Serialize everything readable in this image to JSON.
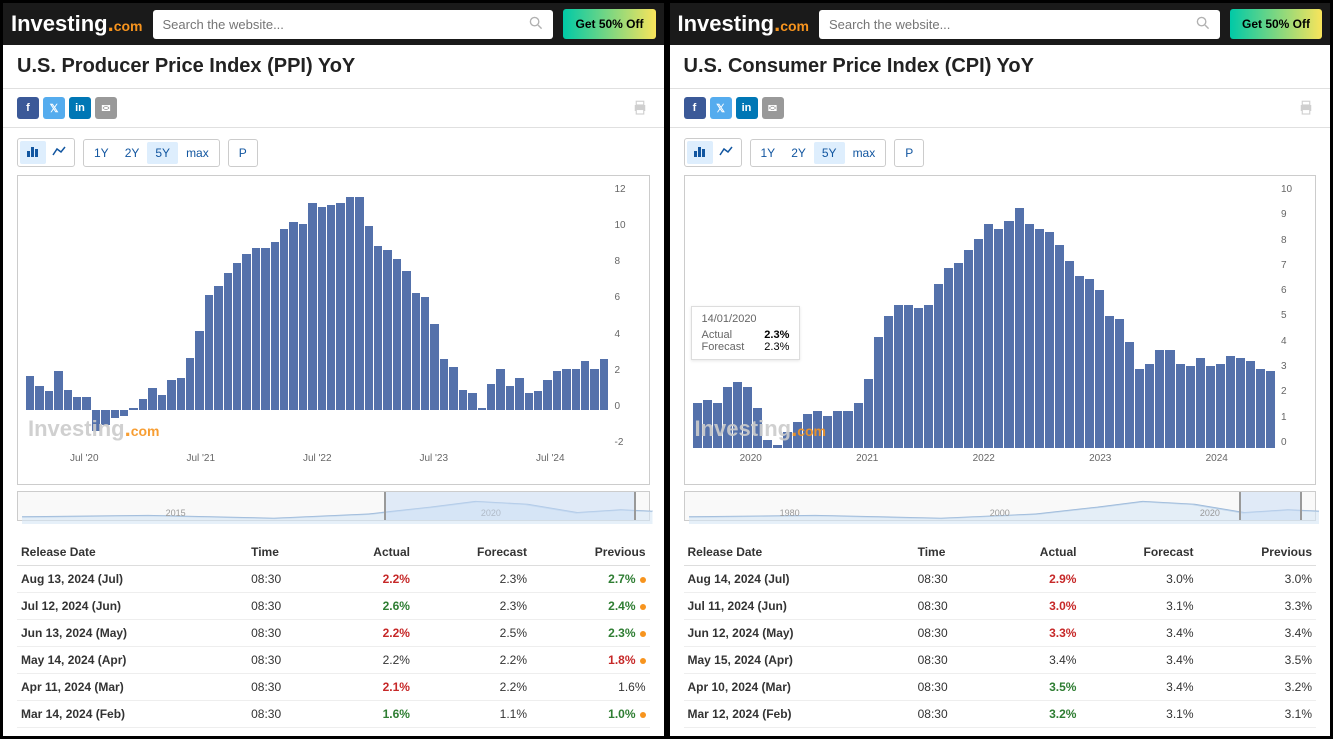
{
  "panels": [
    {
      "logo_text": "Investing",
      "logo_com": ".com",
      "search_placeholder": "Search the website...",
      "promo_label": "Get 50% Off",
      "title": "U.S. Producer Price Index (PPI) YoY",
      "controls": {
        "ranges": [
          "1Y",
          "2Y",
          "5Y",
          "max"
        ],
        "active_range": "5Y",
        "p_label": "P"
      },
      "chart": {
        "type": "bar",
        "bar_color": "#5471ab",
        "background_color": "#ffffff",
        "ylim": [
          -2,
          12
        ],
        "yticks": [
          12,
          10,
          8,
          6,
          4,
          2,
          0,
          -2
        ],
        "xlabels": [
          "Jul '20",
          "Jul '21",
          "Jul '22",
          "Jul '23",
          "Jul '24"
        ],
        "zero_line_pct": 85.7,
        "values": [
          1.8,
          1.3,
          1.0,
          2.1,
          1.1,
          0.7,
          0.7,
          -1.1,
          -0.8,
          -0.4,
          -0.3,
          0.1,
          0.6,
          1.2,
          0.8,
          1.6,
          1.7,
          2.8,
          4.2,
          6.1,
          6.6,
          7.3,
          7.8,
          8.3,
          8.6,
          8.6,
          8.9,
          9.6,
          10.0,
          9.9,
          11.0,
          10.8,
          10.9,
          11.0,
          11.3,
          11.3,
          9.8,
          8.7,
          8.5,
          8.0,
          7.4,
          6.2,
          6.0,
          4.6,
          2.7,
          2.3,
          1.1,
          0.9,
          0.1,
          1.4,
          2.2,
          1.3,
          1.7,
          0.9,
          1.0,
          1.6,
          2.1,
          2.2,
          2.2,
          2.6,
          2.2,
          2.7
        ]
      },
      "nav_chart": {
        "labels": [
          "2015",
          "2020"
        ],
        "window_left_pct": 58,
        "window_width_pct": 40
      },
      "watermark": {
        "text": "Investing",
        "com": ".com"
      },
      "table": {
        "headers": [
          "Release Date",
          "Time",
          "Actual",
          "Forecast",
          "Previous"
        ],
        "rows": [
          {
            "date": "Aug 13, 2024 (Jul)",
            "time": "08:30",
            "actual": "2.2%",
            "actual_cls": "red",
            "forecast": "2.3%",
            "previous": "2.7%",
            "prev_cls": "green",
            "dot": true
          },
          {
            "date": "Jul 12, 2024 (Jun)",
            "time": "08:30",
            "actual": "2.6%",
            "actual_cls": "green",
            "forecast": "2.3%",
            "previous": "2.4%",
            "prev_cls": "green",
            "dot": true
          },
          {
            "date": "Jun 13, 2024 (May)",
            "time": "08:30",
            "actual": "2.2%",
            "actual_cls": "red",
            "forecast": "2.5%",
            "previous": "2.3%",
            "prev_cls": "green",
            "dot": true
          },
          {
            "date": "May 14, 2024 (Apr)",
            "time": "08:30",
            "actual": "2.2%",
            "actual_cls": "neutral",
            "forecast": "2.2%",
            "previous": "1.8%",
            "prev_cls": "red",
            "dot": true
          },
          {
            "date": "Apr 11, 2024 (Mar)",
            "time": "08:30",
            "actual": "2.1%",
            "actual_cls": "red",
            "forecast": "2.2%",
            "previous": "1.6%",
            "prev_cls": "neutral",
            "dot": false
          },
          {
            "date": "Mar 14, 2024 (Feb)",
            "time": "08:30",
            "actual": "1.6%",
            "actual_cls": "green",
            "forecast": "1.1%",
            "previous": "1.0%",
            "prev_cls": "green",
            "dot": true
          }
        ]
      }
    },
    {
      "logo_text": "Investing",
      "logo_com": ".com",
      "search_placeholder": "Search the website...",
      "promo_label": "Get 50% Off",
      "title": "U.S. Consumer Price Index (CPI) YoY",
      "controls": {
        "ranges": [
          "1Y",
          "2Y",
          "5Y",
          "max"
        ],
        "active_range": "5Y",
        "p_label": "P"
      },
      "chart": {
        "type": "bar",
        "bar_color": "#5471ab",
        "background_color": "#ffffff",
        "ylim": [
          0,
          10
        ],
        "yticks": [
          10,
          9,
          8,
          7,
          6,
          5,
          4,
          3,
          2,
          1,
          0
        ],
        "xlabels": [
          "2020",
          "2021",
          "2022",
          "2023",
          "2024"
        ],
        "zero_line_pct": 100,
        "tooltip": {
          "date": "14/01/2020",
          "actual_lbl": "Actual",
          "actual": "2.3%",
          "forecast_lbl": "Forecast",
          "forecast": "2.3%"
        },
        "values": [
          1.7,
          1.8,
          1.7,
          2.3,
          2.5,
          2.3,
          1.5,
          0.3,
          0.1,
          0.6,
          1.0,
          1.3,
          1.4,
          1.2,
          1.4,
          1.4,
          1.7,
          2.6,
          4.2,
          5.0,
          5.4,
          5.4,
          5.3,
          5.4,
          6.2,
          6.8,
          7.0,
          7.5,
          7.9,
          8.5,
          8.3,
          8.6,
          9.1,
          8.5,
          8.3,
          8.2,
          7.7,
          7.1,
          6.5,
          6.4,
          6.0,
          5.0,
          4.9,
          4.0,
          3.0,
          3.2,
          3.7,
          3.7,
          3.2,
          3.1,
          3.4,
          3.1,
          3.2,
          3.5,
          3.4,
          3.3,
          3.0,
          2.9
        ]
      },
      "nav_chart": {
        "labels": [
          "1980",
          "2000",
          "2020"
        ],
        "window_left_pct": 88,
        "window_width_pct": 10
      },
      "watermark": {
        "text": "Investing",
        "com": ".com"
      },
      "table": {
        "headers": [
          "Release Date",
          "Time",
          "Actual",
          "Forecast",
          "Previous"
        ],
        "rows": [
          {
            "date": "Aug 14, 2024 (Jul)",
            "time": "08:30",
            "actual": "2.9%",
            "actual_cls": "red",
            "forecast": "3.0%",
            "previous": "3.0%",
            "prev_cls": "neutral",
            "dot": false
          },
          {
            "date": "Jul 11, 2024 (Jun)",
            "time": "08:30",
            "actual": "3.0%",
            "actual_cls": "red",
            "forecast": "3.1%",
            "previous": "3.3%",
            "prev_cls": "neutral",
            "dot": false
          },
          {
            "date": "Jun 12, 2024 (May)",
            "time": "08:30",
            "actual": "3.3%",
            "actual_cls": "red",
            "forecast": "3.4%",
            "previous": "3.4%",
            "prev_cls": "neutral",
            "dot": false
          },
          {
            "date": "May 15, 2024 (Apr)",
            "time": "08:30",
            "actual": "3.4%",
            "actual_cls": "neutral",
            "forecast": "3.4%",
            "previous": "3.5%",
            "prev_cls": "neutral",
            "dot": false
          },
          {
            "date": "Apr 10, 2024 (Mar)",
            "time": "08:30",
            "actual": "3.5%",
            "actual_cls": "green",
            "forecast": "3.4%",
            "previous": "3.2%",
            "prev_cls": "neutral",
            "dot": false
          },
          {
            "date": "Mar 12, 2024 (Feb)",
            "time": "08:30",
            "actual": "3.2%",
            "actual_cls": "green",
            "forecast": "3.1%",
            "previous": "3.1%",
            "prev_cls": "neutral",
            "dot": false
          }
        ]
      }
    }
  ]
}
